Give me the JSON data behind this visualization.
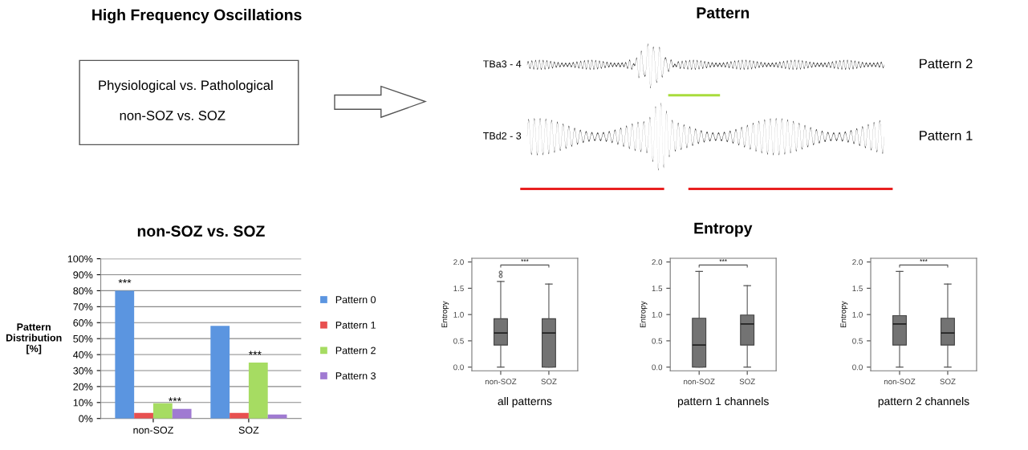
{
  "chart_data": [
    {
      "type": "other",
      "title": "High Frequency Oscillations",
      "annotations": [
        "Physiological vs. Pathological",
        "non-SOZ vs. SOZ"
      ]
    },
    {
      "type": "other",
      "title": "Pattern",
      "annotations": [
        "TBa3 - 4",
        "TBd2 - 3",
        "Pattern 2",
        "Pattern 1"
      ]
    },
    {
      "type": "bar",
      "title": "non-SOZ vs. SOZ",
      "ylabel": "Pattern\nDistribution\n[%]",
      "categories": [
        "non-SOZ",
        "SOZ"
      ],
      "series": [
        {
          "name": "Pattern 0",
          "color": "#5b95e0",
          "values": [
            80,
            58
          ]
        },
        {
          "name": "Pattern 1",
          "color": "#e85050",
          "values": [
            3.5,
            3.5
          ]
        },
        {
          "name": "Pattern 2",
          "color": "#a6dc62",
          "values": [
            9.5,
            35
          ]
        },
        {
          "name": "Pattern 3",
          "color": "#a07ad2",
          "values": [
            6,
            2.5
          ]
        }
      ],
      "ylim": [
        0,
        100
      ],
      "yticks": [
        {
          "value": 0,
          "label": "0%"
        },
        {
          "value": 10,
          "label": "10%"
        },
        {
          "value": 20,
          "label": "20%"
        },
        {
          "value": 30,
          "label": "30%"
        },
        {
          "value": 40,
          "label": "40%"
        },
        {
          "value": 50,
          "label": "50%"
        },
        {
          "value": 60,
          "label": "60%"
        },
        {
          "value": 70,
          "label": "70%"
        },
        {
          "value": 80,
          "label": "80%"
        },
        {
          "value": 90,
          "label": "90%"
        },
        {
          "value": 100,
          "label": "100%"
        }
      ],
      "grid": "y",
      "legend": "right",
      "annotations": [
        "***",
        "***",
        "***"
      ]
    },
    {
      "type": "other",
      "title": "Entropy"
    },
    {
      "type": "box",
      "xlabel": "all patterns",
      "ylabel": "Entropy",
      "categories": [
        "non-SOZ",
        "SOZ"
      ],
      "series": [
        {
          "color": "#737373",
          "boxes": [
            {
              "low": 0,
              "q1": 0.42,
              "median": 0.65,
              "q3": 0.92,
              "high": 1.63,
              "outliers": [
                1.73,
                1.8
              ]
            },
            {
              "low": 0,
              "q1": 0,
              "median": 0.65,
              "q3": 0.92,
              "high": 1.58
            }
          ]
        }
      ],
      "ylim": [
        -0.07,
        2.07
      ],
      "yticks": [
        {
          "value": 0,
          "label": "0.0"
        },
        {
          "value": 0.5,
          "label": "0.5"
        },
        {
          "value": 1,
          "label": "1.0"
        },
        {
          "value": 1.5,
          "label": "1.5"
        },
        {
          "value": 2,
          "label": "2.0"
        }
      ],
      "annotations": [
        "***"
      ]
    },
    {
      "type": "box",
      "xlabel": "pattern 1 channels",
      "ylabel": "Entropy",
      "categories": [
        "non-SOZ",
        "SOZ"
      ],
      "series": [
        {
          "color": "#737373",
          "boxes": [
            {
              "low": 0,
              "q1": 0,
              "median": 0.42,
              "q3": 0.93,
              "high": 1.82
            },
            {
              "low": 0,
              "q1": 0.42,
              "median": 0.82,
              "q3": 0.99,
              "high": 1.55
            }
          ]
        }
      ],
      "ylim": [
        -0.07,
        2.07
      ],
      "yticks": [
        {
          "value": 0,
          "label": "0.0"
        },
        {
          "value": 0.5,
          "label": "0.5"
        },
        {
          "value": 1,
          "label": "1.0"
        },
        {
          "value": 1.5,
          "label": "1.5"
        },
        {
          "value": 2,
          "label": "2.0"
        }
      ],
      "annotations": [
        "***"
      ]
    },
    {
      "type": "box",
      "xlabel": "pattern 2 channels",
      "ylabel": "Entropy",
      "categories": [
        "non-SOZ",
        "SOZ"
      ],
      "series": [
        {
          "color": "#737373",
          "boxes": [
            {
              "low": 0,
              "q1": 0.42,
              "median": 0.82,
              "q3": 0.98,
              "high": 1.82
            },
            {
              "low": 0,
              "q1": 0.42,
              "median": 0.65,
              "q3": 0.93,
              "high": 1.58
            }
          ]
        }
      ],
      "ylim": [
        -0.07,
        2.07
      ],
      "yticks": [
        {
          "value": 0,
          "label": "0.0"
        },
        {
          "value": 0.5,
          "label": "0.5"
        },
        {
          "value": 1,
          "label": "1.0"
        },
        {
          "value": 1.5,
          "label": "1.5"
        },
        {
          "value": 2,
          "label": "2.0"
        }
      ],
      "annotations": [
        "***"
      ]
    }
  ]
}
